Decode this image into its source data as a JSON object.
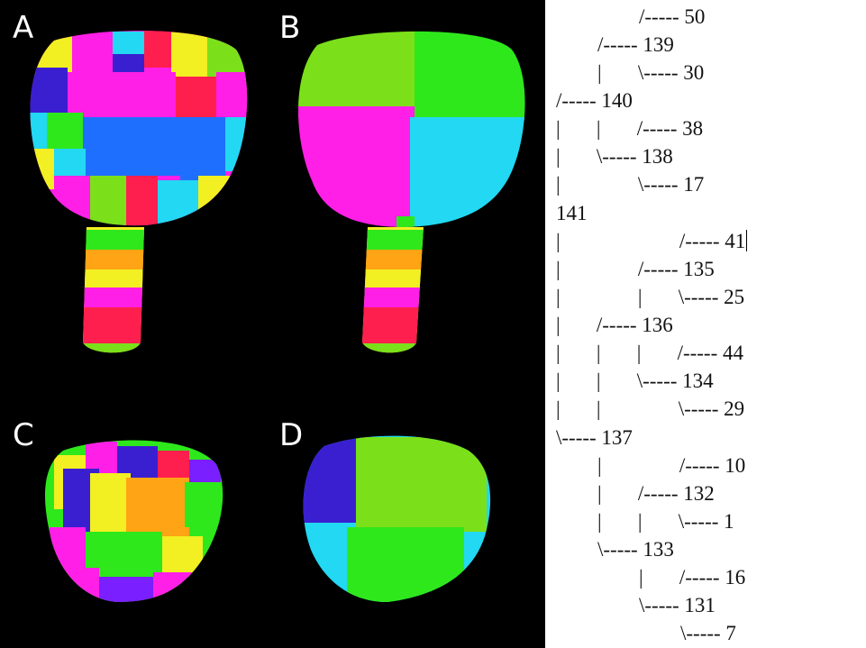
{
  "panels": {
    "a": {
      "label": "A"
    },
    "b": {
      "label": "B"
    },
    "c": {
      "label": "C"
    },
    "d": {
      "label": "D"
    }
  },
  "tree_lines": [
    "                /----- 50",
    "        /----- 139",
    "        |       \\----- 30",
    "/----- 140",
    "|       |       /----- 38",
    "|       \\----- 138",
    "|               \\----- 17",
    "141",
    "|                       /----- 41",
    "|               /----- 135",
    "|               |       \\----- 25",
    "|       /----- 136",
    "|       |       |       /----- 44",
    "|       |       \\----- 134",
    "|       |               \\----- 29",
    "\\----- 137",
    "        |               /----- 10",
    "        |       /----- 132",
    "        |       |       \\----- 1",
    "        \\----- 133",
    "                |       /----- 16",
    "                \\----- 131",
    "                        \\----- 7"
  ],
  "colors": {
    "magenta": "#ff1fe6",
    "blue": "#1f6fff",
    "cyan": "#22d8f2",
    "green": "#2ee81c",
    "lime": "#7be01a",
    "yellow": "#f2ef22",
    "orange": "#ffa414",
    "red": "#ff1f4e",
    "purple": "#7a1fff",
    "violet": "#3a1fd0"
  }
}
